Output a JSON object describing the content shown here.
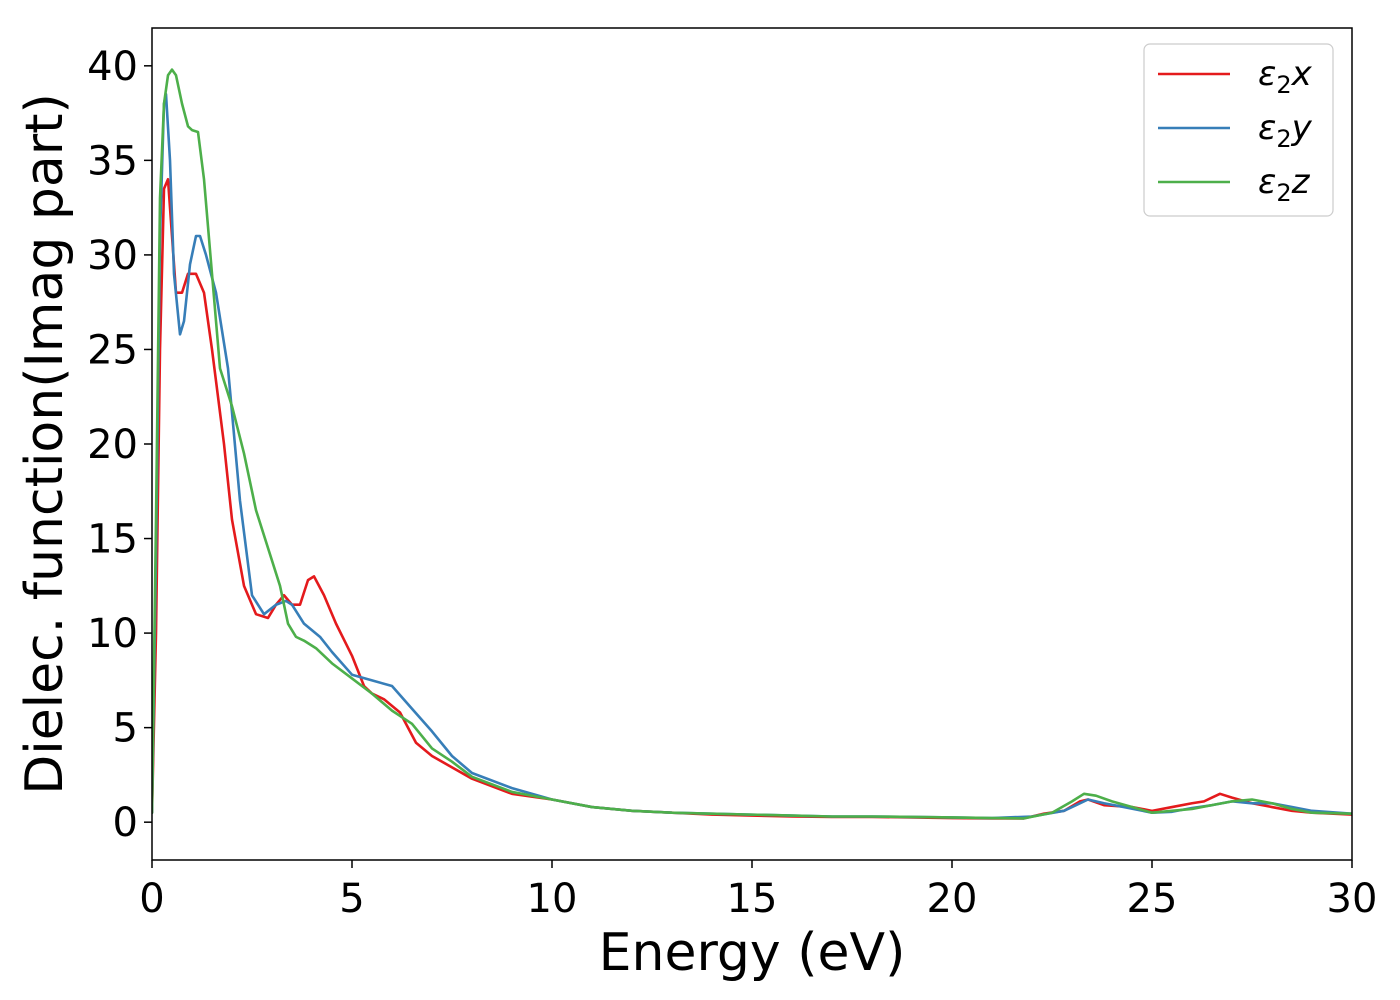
{
  "chart_data": {
    "type": "line",
    "title": "",
    "xlabel": "Energy (eV)",
    "ylabel": "Dielec. function(Imag part)",
    "xlim": [
      0,
      30
    ],
    "ylim": [
      -2,
      42
    ],
    "xticks": [
      0,
      5,
      10,
      15,
      20,
      25,
      30
    ],
    "yticks": [
      0,
      5,
      10,
      15,
      20,
      25,
      30,
      35,
      40
    ],
    "grid": false,
    "legend_position": "top-right",
    "series": [
      {
        "name": "ε₂x",
        "legend_base": "ε",
        "legend_sub": "2",
        "legend_var": "x",
        "color": "#e41a1c",
        "x": [
          0,
          0.1,
          0.2,
          0.3,
          0.4,
          0.5,
          0.6,
          0.75,
          0.9,
          1.1,
          1.3,
          1.5,
          1.8,
          2.0,
          2.3,
          2.6,
          2.9,
          3.1,
          3.3,
          3.5,
          3.7,
          3.9,
          4.05,
          4.3,
          4.6,
          5.0,
          5.3,
          5.5,
          5.8,
          6.2,
          6.6,
          7.0,
          7.5,
          8.0,
          9.0,
          10.0,
          11.0,
          12.0,
          13.0,
          14.0,
          15.0,
          16.0,
          17.0,
          18.0,
          19.0,
          20.0,
          21.0,
          21.8,
          22.3,
          22.8,
          23.2,
          23.4,
          23.8,
          24.5,
          25.0,
          25.5,
          26.0,
          26.3,
          26.5,
          26.7,
          27.0,
          27.5,
          28.0,
          28.5,
          29.0,
          30.0
        ],
        "y": [
          0.5,
          10,
          25,
          33.5,
          34,
          31,
          28,
          28,
          29,
          29,
          28,
          25,
          20,
          16,
          12.5,
          11,
          10.8,
          11.5,
          12,
          11.5,
          11.5,
          12.8,
          13,
          12,
          10.5,
          8.8,
          7.2,
          6.8,
          6.5,
          5.8,
          4.2,
          3.5,
          2.9,
          2.3,
          1.5,
          1.2,
          0.8,
          0.6,
          0.5,
          0.4,
          0.35,
          0.3,
          0.28,
          0.28,
          0.25,
          0.22,
          0.2,
          0.2,
          0.45,
          0.6,
          1.1,
          1.2,
          0.9,
          0.8,
          0.6,
          0.8,
          1.0,
          1.1,
          1.3,
          1.5,
          1.3,
          1.0,
          0.8,
          0.6,
          0.5,
          0.4
        ]
      },
      {
        "name": "ε₂y",
        "legend_base": "ε",
        "legend_sub": "2",
        "legend_var": "y",
        "color": "#377eb8",
        "x": [
          0,
          0.1,
          0.2,
          0.3,
          0.35,
          0.45,
          0.55,
          0.7,
          0.8,
          0.95,
          1.1,
          1.2,
          1.35,
          1.6,
          1.9,
          2.2,
          2.5,
          2.8,
          3.1,
          3.35,
          3.5,
          3.8,
          4.2,
          4.5,
          5.0,
          5.5,
          6.0,
          6.5,
          7.0,
          7.5,
          8.0,
          9.0,
          10.0,
          11.0,
          12.0,
          13.0,
          14.0,
          15.0,
          16.0,
          17.0,
          18.0,
          19.0,
          20.0,
          21.0,
          22.0,
          22.8,
          23.1,
          23.4,
          23.8,
          24.3,
          25.0,
          25.5,
          26.0,
          26.5,
          27.0,
          27.5,
          28.0,
          28.5,
          29.0,
          30.0
        ],
        "y": [
          0.5,
          14,
          31,
          38,
          38.5,
          35,
          29,
          25.8,
          26.5,
          29.5,
          31,
          31,
          30,
          28,
          24,
          17,
          12,
          11,
          11.5,
          11.7,
          11.5,
          10.5,
          9.8,
          9,
          7.8,
          7.5,
          7.2,
          6.0,
          4.8,
          3.5,
          2.6,
          1.8,
          1.2,
          0.8,
          0.6,
          0.5,
          0.45,
          0.4,
          0.35,
          0.3,
          0.3,
          0.28,
          0.25,
          0.22,
          0.3,
          0.6,
          0.9,
          1.2,
          1.0,
          0.8,
          0.5,
          0.55,
          0.75,
          0.9,
          1.1,
          1.0,
          1.0,
          0.8,
          0.6,
          0.45
        ]
      },
      {
        "name": "ε₂z",
        "legend_base": "ε",
        "legend_sub": "2",
        "legend_var": "z",
        "color": "#4daf4a",
        "x": [
          0,
          0.1,
          0.2,
          0.3,
          0.4,
          0.5,
          0.6,
          0.75,
          0.9,
          1.0,
          1.15,
          1.3,
          1.5,
          1.7,
          2.0,
          2.3,
          2.6,
          2.9,
          3.2,
          3.4,
          3.6,
          3.8,
          4.1,
          4.5,
          5.0,
          5.5,
          6.0,
          6.5,
          7.0,
          7.5,
          8.0,
          9.0,
          10.0,
          11.0,
          12.0,
          13.0,
          14.0,
          15.0,
          16.0,
          17.0,
          18.0,
          19.0,
          20.0,
          21.0,
          21.8,
          22.5,
          23.0,
          23.3,
          23.6,
          24.0,
          24.5,
          25.0,
          25.5,
          26.0,
          26.5,
          27.0,
          27.5,
          28.0,
          28.5,
          29.0,
          30.0
        ],
        "y": [
          0.5,
          16,
          33,
          38,
          39.5,
          39.8,
          39.5,
          38,
          36.8,
          36.6,
          36.5,
          34,
          29,
          24,
          22,
          19.5,
          16.5,
          14.5,
          12.5,
          10.5,
          9.8,
          9.6,
          9.2,
          8.4,
          7.6,
          6.8,
          5.9,
          5.2,
          3.9,
          3.2,
          2.4,
          1.6,
          1.2,
          0.8,
          0.6,
          0.5,
          0.45,
          0.4,
          0.35,
          0.3,
          0.3,
          0.28,
          0.25,
          0.22,
          0.2,
          0.5,
          1.1,
          1.5,
          1.4,
          1.1,
          0.8,
          0.5,
          0.6,
          0.7,
          0.9,
          1.1,
          1.2,
          1.0,
          0.7,
          0.5,
          0.45
        ]
      }
    ]
  }
}
